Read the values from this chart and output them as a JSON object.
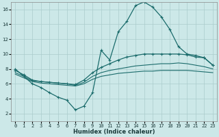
{
  "xlabel": "Humidex (Indice chaleur)",
  "bg_color": "#cce8e8",
  "line_color": "#1a6b6b",
  "grid_color": "#aacccc",
  "xlim": [
    -0.5,
    23.5
  ],
  "ylim": [
    1,
    17
  ],
  "xticks": [
    0,
    1,
    2,
    3,
    4,
    5,
    6,
    7,
    8,
    9,
    10,
    11,
    12,
    13,
    14,
    15,
    16,
    17,
    18,
    19,
    20,
    21,
    22,
    23
  ],
  "yticks": [
    2,
    4,
    6,
    8,
    10,
    12,
    14,
    16
  ],
  "line1_x": [
    0,
    1,
    2,
    3,
    4,
    5,
    6,
    7,
    8,
    9,
    10,
    11,
    12,
    13,
    14,
    15,
    16,
    17,
    18,
    19,
    20,
    21,
    22,
    23
  ],
  "line1_y": [
    8.0,
    7.0,
    6.0,
    5.5,
    4.8,
    4.2,
    3.8,
    2.5,
    3.0,
    4.8,
    10.5,
    9.2,
    13.0,
    14.4,
    16.5,
    17.0,
    16.3,
    15.0,
    13.3,
    11.0,
    10.0,
    9.8,
    9.5,
    8.5
  ],
  "line2_x": [
    0,
    1,
    2,
    3,
    4,
    5,
    6,
    7,
    8,
    9,
    10,
    11,
    12,
    13,
    14,
    15,
    16,
    17,
    18,
    19,
    20,
    21,
    22,
    23
  ],
  "line2_y": [
    7.8,
    7.2,
    6.5,
    6.3,
    6.2,
    6.1,
    6.0,
    5.9,
    6.5,
    7.5,
    8.2,
    8.7,
    9.2,
    9.6,
    9.8,
    10.0,
    10.0,
    10.0,
    10.0,
    10.0,
    9.9,
    9.6,
    9.5,
    8.5
  ],
  "line3_x": [
    0,
    1,
    2,
    3,
    4,
    5,
    6,
    7,
    8,
    9,
    10,
    11,
    12,
    13,
    14,
    15,
    16,
    17,
    18,
    19,
    20,
    21,
    22,
    23
  ],
  "line3_y": [
    7.5,
    7.0,
    6.4,
    6.3,
    6.2,
    6.1,
    6.0,
    5.8,
    6.2,
    7.0,
    7.5,
    7.8,
    8.0,
    8.2,
    8.4,
    8.5,
    8.6,
    8.7,
    8.7,
    8.8,
    8.7,
    8.5,
    8.3,
    8.0
  ],
  "line4_x": [
    0,
    1,
    2,
    3,
    4,
    5,
    6,
    7,
    8,
    9,
    10,
    11,
    12,
    13,
    14,
    15,
    16,
    17,
    18,
    19,
    20,
    21,
    22,
    23
  ],
  "line4_y": [
    7.3,
    6.8,
    6.3,
    6.1,
    6.0,
    5.9,
    5.8,
    5.7,
    6.0,
    6.6,
    7.0,
    7.2,
    7.4,
    7.5,
    7.6,
    7.7,
    7.7,
    7.8,
    7.8,
    7.8,
    7.8,
    7.7,
    7.6,
    7.5
  ]
}
